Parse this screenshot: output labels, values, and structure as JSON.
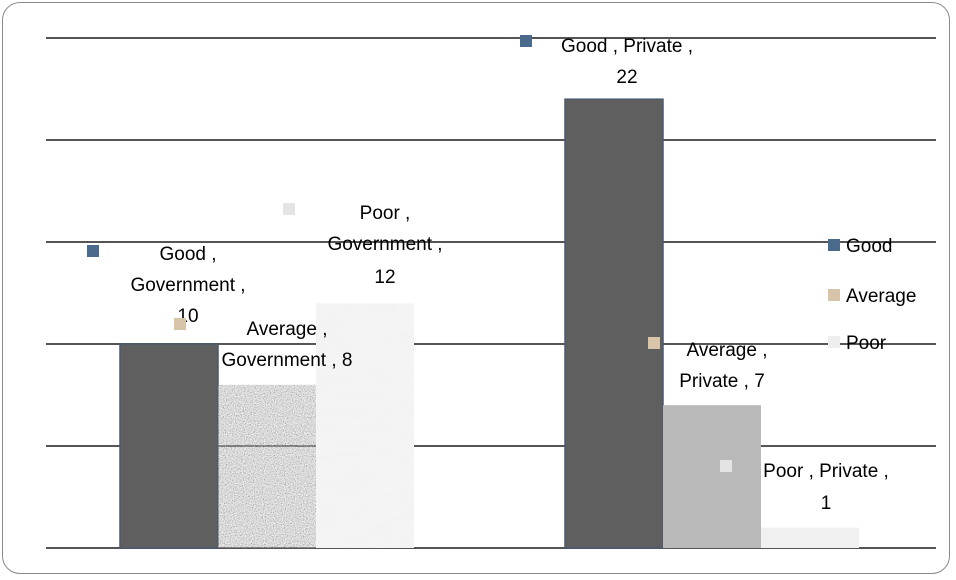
{
  "chart_data": {
    "type": "bar",
    "categories": [
      "Government",
      "Private"
    ],
    "series": [
      {
        "name": "Good",
        "values": [
          10,
          22
        ],
        "color": "#606060"
      },
      {
        "name": "Average",
        "values": [
          8,
          7
        ],
        "color": "#b0b0b0"
      },
      {
        "name": "Poor",
        "values": [
          12,
          1
        ],
        "color": "#eeeeee"
      }
    ],
    "ylim": [
      0,
      25
    ],
    "grid": true,
    "legend_position": "right",
    "data_labels": [
      [
        "Good ,",
        "Government ,",
        "10"
      ],
      [
        "Good , Private ,",
        "22"
      ],
      [
        "Average ,",
        "Government , 8"
      ],
      [
        "Average ,",
        "Private , 7"
      ],
      [
        "Poor ,",
        "Government ,",
        "12"
      ],
      [
        "Poor , Private ,",
        "1"
      ]
    ]
  }
}
